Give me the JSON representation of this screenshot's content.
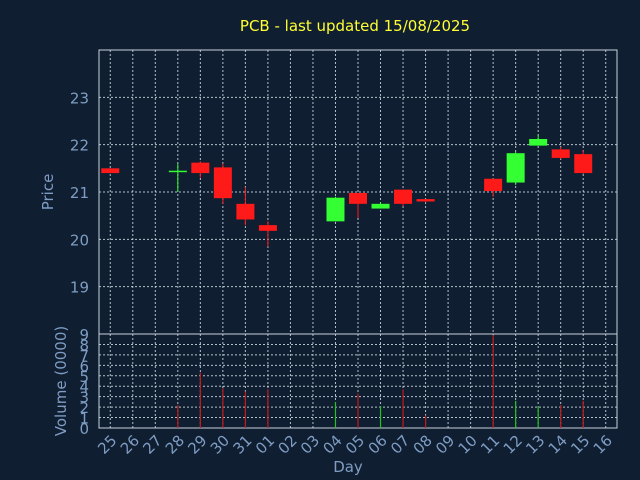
{
  "chart_data": {
    "type": "candlestick",
    "title": "PCB - last updated 15/08/2025",
    "xlabel": "Day",
    "categories": [
      "25",
      "26",
      "27",
      "28",
      "29",
      "30",
      "31",
      "01",
      "02",
      "03",
      "04",
      "05",
      "06",
      "07",
      "08",
      "09",
      "10",
      "11",
      "12",
      "13",
      "14",
      "15",
      "16"
    ],
    "price_panel": {
      "ylabel": "Price",
      "ylim": [
        18.0,
        24.0
      ],
      "yticks": [
        19,
        20,
        21,
        22,
        23
      ],
      "candles": [
        {
          "x": "25",
          "open": 21.5,
          "high": 21.5,
          "low": 21.4,
          "close": 21.4
        },
        {
          "x": "28",
          "open": 21.45,
          "high": 21.6,
          "low": 21.0,
          "close": 21.45
        },
        {
          "x": "29",
          "open": 21.62,
          "high": 21.65,
          "low": 21.3,
          "close": 21.4
        },
        {
          "x": "30",
          "open": 21.52,
          "high": 21.6,
          "low": 20.75,
          "close": 20.87
        },
        {
          "x": "31",
          "open": 20.75,
          "high": 21.1,
          "low": 20.3,
          "close": 20.42
        },
        {
          "x": "01",
          "open": 20.3,
          "high": 20.38,
          "low": 19.85,
          "close": 20.18
        },
        {
          "x": "04",
          "open": 20.38,
          "high": 20.9,
          "low": 20.38,
          "close": 20.88
        },
        {
          "x": "05",
          "open": 20.98,
          "high": 20.98,
          "low": 20.45,
          "close": 20.75
        },
        {
          "x": "06",
          "open": 20.65,
          "high": 20.78,
          "low": 20.65,
          "close": 20.75
        },
        {
          "x": "07",
          "open": 21.05,
          "high": 21.05,
          "low": 20.7,
          "close": 20.75
        },
        {
          "x": "08",
          "open": 20.85,
          "high": 20.85,
          "low": 20.78,
          "close": 20.8
        },
        {
          "x": "11",
          "open": 21.28,
          "high": 21.28,
          "low": 20.9,
          "close": 21.02
        },
        {
          "x": "12",
          "open": 21.2,
          "high": 21.85,
          "low": 21.15,
          "close": 21.82
        },
        {
          "x": "13",
          "open": 21.98,
          "high": 22.2,
          "low": 21.98,
          "close": 22.12
        },
        {
          "x": "14",
          "open": 21.9,
          "high": 21.95,
          "low": 21.7,
          "close": 21.72
        },
        {
          "x": "15",
          "open": 21.8,
          "high": 21.88,
          "low": 21.38,
          "close": 21.4
        }
      ]
    },
    "volume_panel": {
      "ylabel": "Volume (0000)",
      "ylim": [
        0,
        9
      ],
      "yticks": [
        0,
        1,
        2,
        3,
        4,
        5,
        6,
        7,
        8,
        9
      ],
      "bars": [
        {
          "x": "28",
          "value": 2.2,
          "color": "red"
        },
        {
          "x": "29",
          "value": 5.3,
          "color": "red"
        },
        {
          "x": "30",
          "value": 3.8,
          "color": "red"
        },
        {
          "x": "31",
          "value": 3.5,
          "color": "red"
        },
        {
          "x": "01",
          "value": 3.7,
          "color": "red"
        },
        {
          "x": "04",
          "value": 2.5,
          "color": "green"
        },
        {
          "x": "05",
          "value": 3.3,
          "color": "red"
        },
        {
          "x": "06",
          "value": 2.1,
          "color": "green"
        },
        {
          "x": "07",
          "value": 3.7,
          "color": "red"
        },
        {
          "x": "08",
          "value": 1.2,
          "color": "red"
        },
        {
          "x": "11",
          "value": 8.9,
          "color": "red"
        },
        {
          "x": "12",
          "value": 2.6,
          "color": "green"
        },
        {
          "x": "13",
          "value": 2.1,
          "color": "green"
        },
        {
          "x": "14",
          "value": 2.2,
          "color": "red"
        },
        {
          "x": "15",
          "value": 2.6,
          "color": "red"
        }
      ]
    },
    "colors": {
      "up": "#33ff33",
      "down": "#ff1a1a",
      "volume_up": "#22c222",
      "volume_down": "#c21a1a",
      "background": "#0f1e30",
      "title": "#ffff33",
      "text": "#7f9dc4",
      "grid": "#c8d2dc"
    },
    "grid": true
  }
}
